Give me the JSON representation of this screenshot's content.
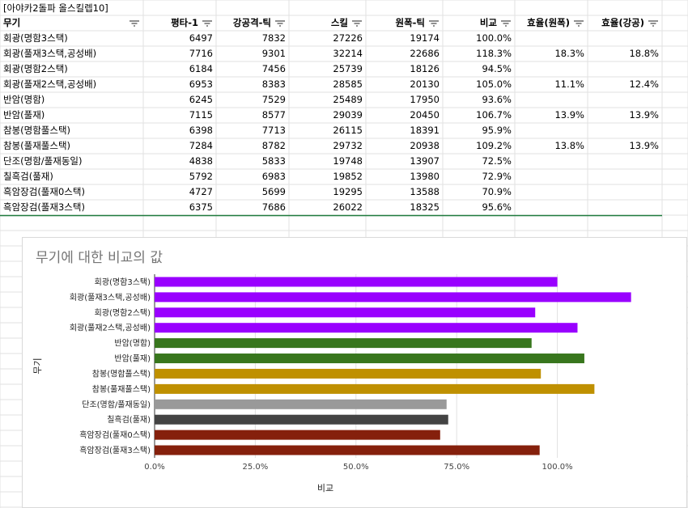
{
  "sheet": {
    "title": "[아야카2돌파 올스킬렙10]",
    "headers": [
      "무기",
      "평타-1",
      "강공격-틱",
      "스킬",
      "원폭-틱",
      "비교",
      "효율(원폭)",
      "효율(강공)"
    ],
    "rows": [
      [
        "회광(명함3스택)",
        "6497",
        "7832",
        "27226",
        "19174",
        "100.0%",
        "",
        ""
      ],
      [
        "회광(풀재3스택,공성배)",
        "7716",
        "9301",
        "32214",
        "22686",
        "118.3%",
        "18.3%",
        "18.8%"
      ],
      [
        "회광(명함2스택)",
        "6184",
        "7456",
        "25739",
        "18126",
        "94.5%",
        "",
        ""
      ],
      [
        "회광(풀재2스택,공성배)",
        "6953",
        "8383",
        "28585",
        "20130",
        "105.0%",
        "11.1%",
        "12.4%"
      ],
      [
        "반암(명함)",
        "6245",
        "7529",
        "25489",
        "17950",
        "93.6%",
        "",
        ""
      ],
      [
        "반암(풀재)",
        "7115",
        "8577",
        "29039",
        "20450",
        "106.7%",
        "13.9%",
        "13.9%"
      ],
      [
        "참봉(명함풀스택)",
        "6398",
        "7713",
        "26115",
        "18391",
        "95.9%",
        "",
        ""
      ],
      [
        "참봉(풀재풀스택)",
        "7284",
        "8782",
        "29732",
        "20938",
        "109.2%",
        "13.8%",
        "13.9%"
      ],
      [
        "단조(명함/풀재동일)",
        "4838",
        "5833",
        "19748",
        "13907",
        "72.5%",
        "",
        ""
      ],
      [
        "칠흑검(풀재)",
        "5792",
        "6983",
        "19852",
        "13980",
        "72.9%",
        "",
        ""
      ],
      [
        "흑암장검(풀재0스택)",
        "4727",
        "5699",
        "19295",
        "13588",
        "70.9%",
        "",
        ""
      ],
      [
        "흑암장검(풀재3스택)",
        "6375",
        "7686",
        "26022",
        "18325",
        "95.6%",
        "",
        ""
      ]
    ]
  },
  "chart_data": {
    "type": "bar",
    "orientation": "horizontal",
    "title": "무기에 대한 비교의 값",
    "xlabel": "비교",
    "ylabel": "무기",
    "categories": [
      "회광(명함3스택)",
      "회광(풀재3스택,공성배)",
      "회광(명함2스택)",
      "회광(풀재2스택,공성배)",
      "반암(명함)",
      "반암(풀재)",
      "참봉(명함풀스택)",
      "참봉(풀재풀스택)",
      "단조(명함/풀재동일)",
      "칠흑검(풀재)",
      "흑암장검(풀재0스택)",
      "흑암장검(풀재3스택)"
    ],
    "values": [
      100.0,
      118.3,
      94.5,
      105.0,
      93.6,
      106.7,
      95.9,
      109.2,
      72.5,
      72.9,
      70.9,
      95.6
    ],
    "bar_colors": [
      "#9900ff",
      "#9900ff",
      "#9900ff",
      "#9900ff",
      "#38761d",
      "#38761d",
      "#bf9000",
      "#bf9000",
      "#999999",
      "#434343",
      "#85200c",
      "#85200c"
    ],
    "xlim": [
      0,
      125
    ],
    "xticks": [
      0,
      25,
      50,
      75,
      100
    ],
    "xtick_labels": [
      "0.0%",
      "25.0%",
      "50.0%",
      "75.0%",
      "100.0%"
    ],
    "grid": true,
    "legend": "none"
  }
}
